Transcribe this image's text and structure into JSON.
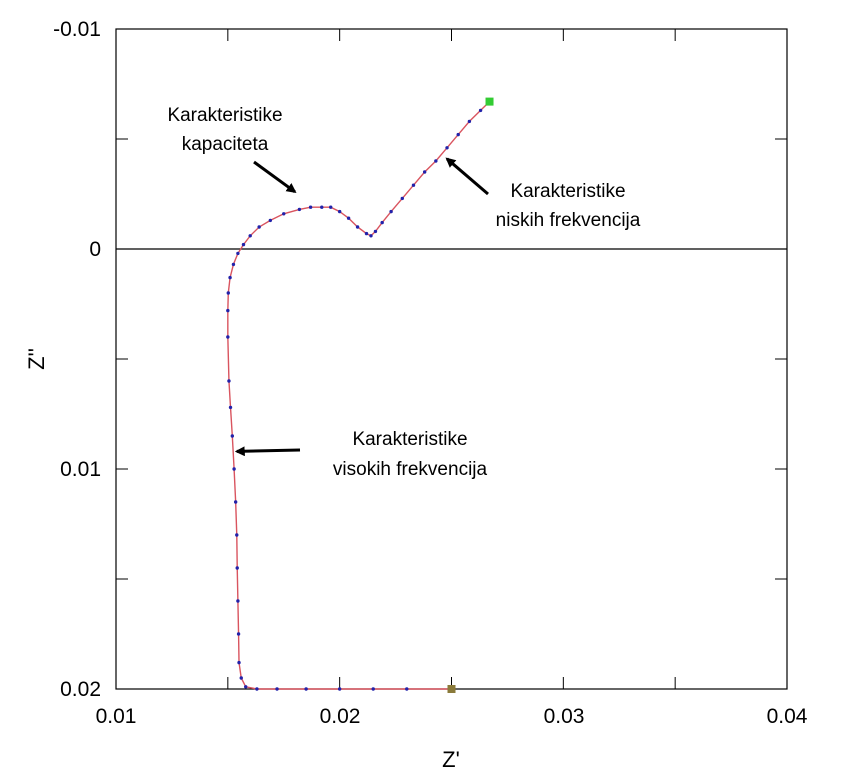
{
  "chart_data": {
    "type": "line",
    "title": "",
    "xlabel": "Z'",
    "ylabel": "Z''",
    "xlim": [
      0.01,
      0.04
    ],
    "ylim": [
      -0.01,
      0.02
    ],
    "y_inverted": true,
    "grid": false,
    "x_ticks": [
      "0.01",
      "0.02",
      "0.03",
      "0.04"
    ],
    "x_tick_values": [
      0.01,
      0.02,
      0.03,
      0.04
    ],
    "y_ticks": [
      "-0.01",
      "0",
      "0.01",
      "0.02"
    ],
    "y_tick_values": [
      -0.01,
      0,
      0.01,
      0.02
    ],
    "reference_line_y": 0,
    "line_color": "#d9545f",
    "marker_color": "#2222aa",
    "endpoint_color": "#33cc33",
    "start_color": "#8a7a3a",
    "series": [
      {
        "x": [
          0.025,
          0.023,
          0.0215,
          0.02,
          0.0185,
          0.0172,
          0.0163,
          0.0158,
          0.0156,
          0.0155,
          0.01548,
          0.01545,
          0.01542,
          0.0154,
          0.01535,
          0.01528,
          0.0152,
          0.01512,
          0.01505,
          0.015,
          0.015,
          0.01502,
          0.0151,
          0.01525,
          0.01545,
          0.0157,
          0.016,
          0.0164,
          0.0169,
          0.0175,
          0.0182,
          0.0187,
          0.0192,
          0.0196,
          0.02,
          0.0204,
          0.0208,
          0.0212,
          0.0214,
          0.0216,
          0.0219,
          0.0223,
          0.0228,
          0.0233,
          0.0238,
          0.0243,
          0.0248,
          0.0253,
          0.0258,
          0.0263,
          0.0267
        ],
        "y": [
          0.02,
          0.02,
          0.02,
          0.02,
          0.02,
          0.02,
          0.02,
          0.0199,
          0.0195,
          0.0188,
          0.0175,
          0.016,
          0.0145,
          0.013,
          0.0115,
          0.01,
          0.0085,
          0.0072,
          0.006,
          0.004,
          0.0028,
          0.002,
          0.0013,
          0.0007,
          0.0002,
          -0.0002,
          -0.0006,
          -0.001,
          -0.0013,
          -0.0016,
          -0.0018,
          -0.0019,
          -0.0019,
          -0.0019,
          -0.0017,
          -0.0014,
          -0.001,
          -0.0007,
          -0.0006,
          -0.0008,
          -0.0012,
          -0.0017,
          -0.0023,
          -0.0029,
          -0.0035,
          -0.004,
          -0.0046,
          -0.0052,
          -0.0058,
          -0.0063,
          -0.0067
        ]
      }
    ],
    "annotations": [
      {
        "lines": [
          "Karakteristike",
          "kapaciteta"
        ],
        "arrow_to": [
          0.018,
          -0.0026
        ]
      },
      {
        "lines": [
          "Karakteristike",
          "niskih frekvencija"
        ],
        "arrow_to": [
          0.0248,
          -0.0041
        ]
      },
      {
        "lines": [
          "Karakteristike",
          "visokih frekvencija"
        ],
        "arrow_to": [
          0.0154,
          0.0092
        ]
      }
    ]
  }
}
